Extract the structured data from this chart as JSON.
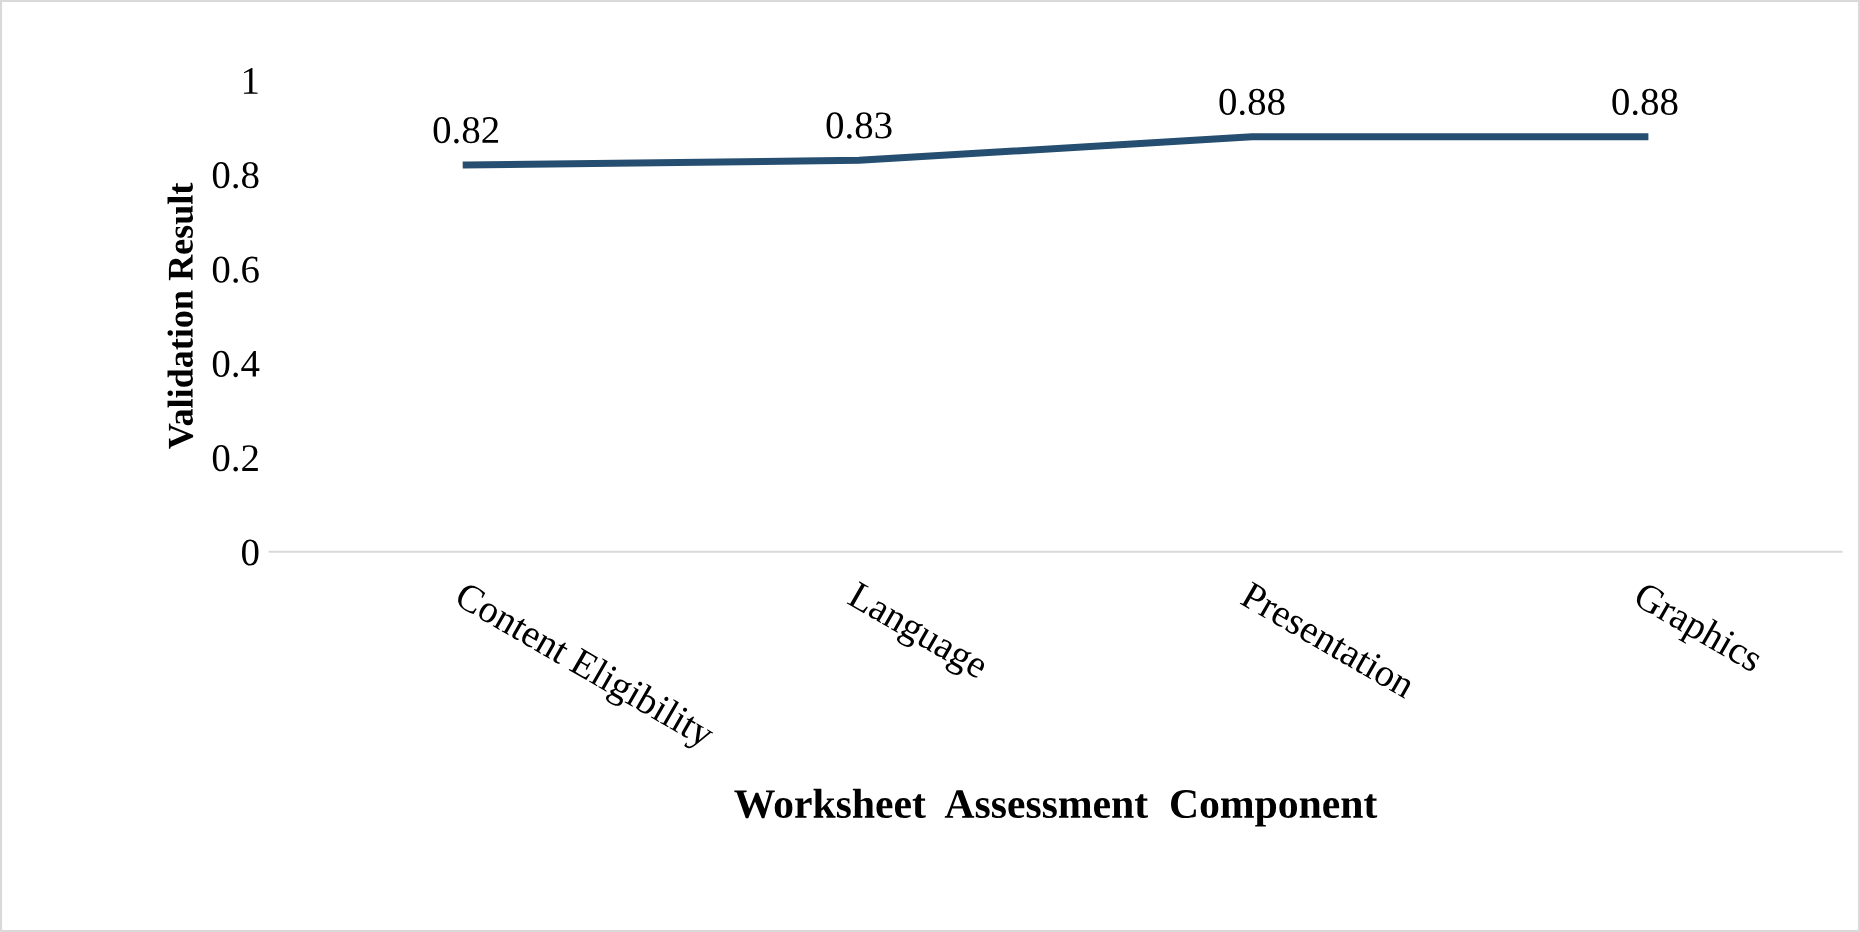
{
  "chart_data": {
    "type": "line",
    "xlabel": "Worksheet  Assessment  Component",
    "ylabel": "Validation Result",
    "categories": [
      "Content Eligibility",
      "Language",
      "Presentation",
      "Graphics"
    ],
    "values": [
      0.82,
      0.83,
      0.88,
      0.88
    ],
    "color": "#264e70",
    "ylim": [
      0,
      1
    ],
    "yticks": [
      0,
      0.2,
      0.4,
      0.6,
      0.8,
      1
    ],
    "grid": false,
    "legend": false,
    "marker": "none",
    "line_style": "solid",
    "data_labels": true
  }
}
